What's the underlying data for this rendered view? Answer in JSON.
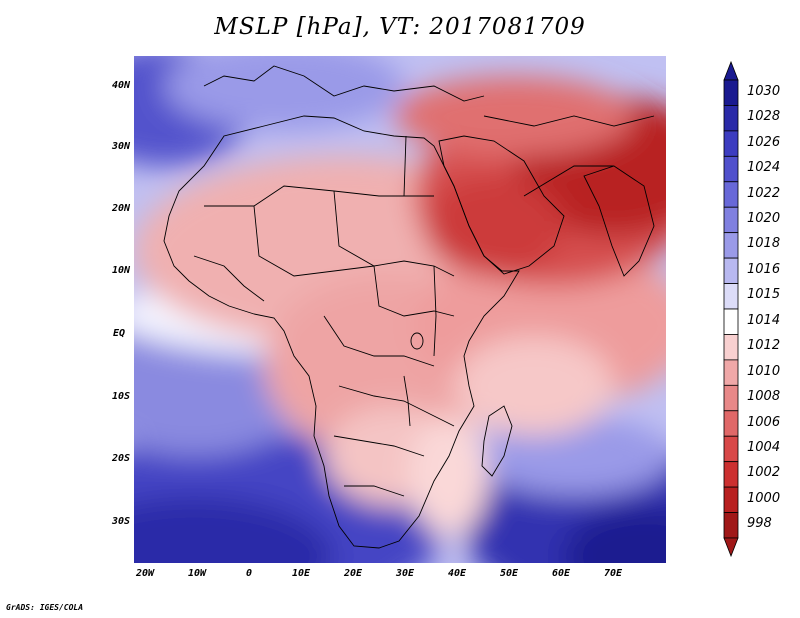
{
  "title": "MSLP [hPa], VT: 2017081709",
  "footer": "GrADS: IGES/COLA",
  "map": {
    "lat_labels": [
      "40N",
      "30N",
      "20N",
      "10N",
      "EQ",
      "10S",
      "20S",
      "30S"
    ],
    "lon_labels": [
      "20W",
      "10W",
      "0",
      "10E",
      "20E",
      "30E",
      "40E",
      "50E",
      "60E",
      "70E"
    ]
  },
  "colorbar": {
    "labels": [
      "1030",
      "1028",
      "1026",
      "1024",
      "1022",
      "1020",
      "1018",
      "1016",
      "1015",
      "1014",
      "1012",
      "1010",
      "1008",
      "1006",
      "1004",
      "1002",
      "1000",
      "998"
    ],
    "colors": [
      "#1a1a90",
      "#2a2aa8",
      "#3c3cc0",
      "#5050cc",
      "#6868d8",
      "#8080e0",
      "#9a9ae8",
      "#b8b8f0",
      "#dcdcf8",
      "#ffffff",
      "#f8d0d0",
      "#f0a8a8",
      "#e88888",
      "#e06868",
      "#d84848",
      "#cc3030",
      "#b82020",
      "#a01818"
    ]
  }
}
